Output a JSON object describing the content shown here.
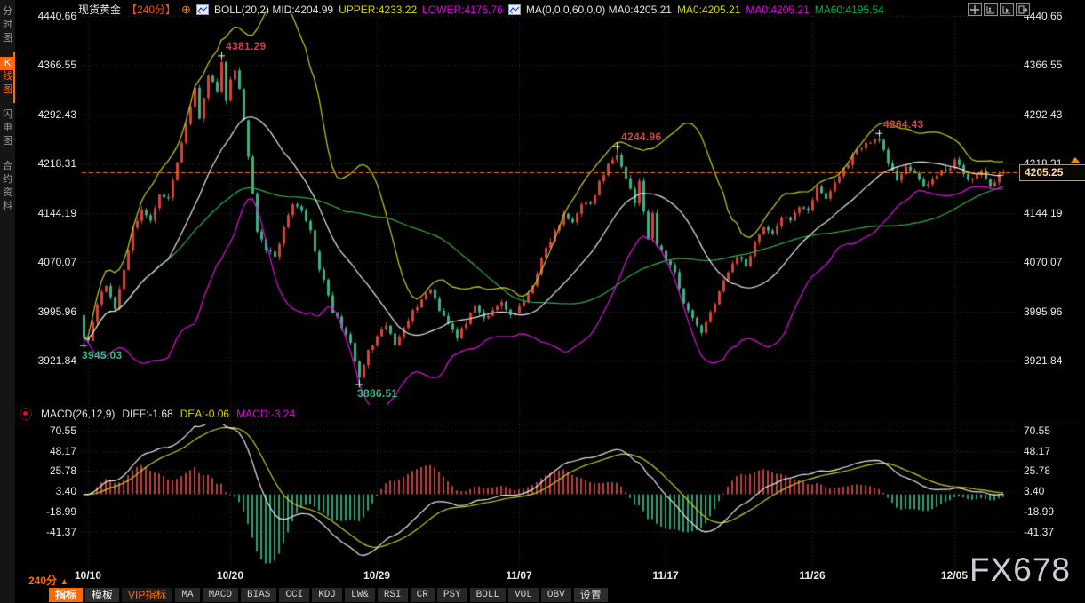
{
  "window": {
    "watermark": "FX678"
  },
  "icons": {
    "collapse": "⊕"
  },
  "sidebar": {
    "tabs": [
      {
        "label": "分时图",
        "selected": false
      },
      {
        "label": "K线图",
        "selected": true
      },
      {
        "label": "闪电图",
        "selected": false
      },
      {
        "label": "合约资料",
        "selected": false
      }
    ]
  },
  "legend": {
    "symbol": "现货黄金",
    "period": "【240分】",
    "boll": {
      "name": "BOLL(20,2)",
      "mid": "MID:4204.99",
      "upper": "UPPER:4233.22",
      "lower": "LOWER:4176.76"
    },
    "ma": {
      "name": "MA(0,0,0,60,0,0)",
      "ma0_a": "MA0:4205.21",
      "ma0_b": "MA0:4205.21",
      "ma0_c": "MA0:4205.21",
      "ma60": "MA60:4195.54"
    }
  },
  "main_panel": {
    "y_labels": [
      "4440.66",
      "4366.55",
      "4292.43",
      "4218.31",
      "4144.19",
      "4070.07",
      "3995.96",
      "3921.84"
    ],
    "y_max": 4440.66,
    "y_min": 3921.84,
    "current_price": "4205.25",
    "current_price_value": 4205.25
  },
  "macd_panel": {
    "name": "MACD(26,12,9)",
    "diff": "DIFF:-1.68",
    "dea": "DEA:-0.06",
    "macd": "MACD:-3.24",
    "y_labels": [
      "70.55",
      "48.17",
      "25.78",
      "3.40",
      "-18.99",
      "-41.37"
    ],
    "y_max": 70.55,
    "y_min": -41.37
  },
  "x_axis": {
    "period": "240分",
    "period_arrow": "▲",
    "dates": [
      {
        "label": "10/10",
        "index": 1
      },
      {
        "label": "10/20",
        "index": 33
      },
      {
        "label": "10/29",
        "index": 66
      },
      {
        "label": "11/07",
        "index": 98
      },
      {
        "label": "11/17",
        "index": 131
      },
      {
        "label": "11/26",
        "index": 164
      },
      {
        "label": "12/05",
        "index": 196
      }
    ]
  },
  "bottom_tabs": [
    {
      "label": "指标",
      "style": "selected"
    },
    {
      "label": "模板",
      "style": "normal"
    },
    {
      "label": "VIP指标",
      "style": "vip"
    },
    {
      "label": "MA",
      "style": "mono"
    },
    {
      "label": "MACD",
      "style": "mono"
    },
    {
      "label": "BIAS",
      "style": "mono"
    },
    {
      "label": "CCI",
      "style": "mono"
    },
    {
      "label": "KDJ",
      "style": "mono"
    },
    {
      "label": "LW&",
      "style": "mono"
    },
    {
      "label": "RSI",
      "style": "mono"
    },
    {
      "label": "CR",
      "style": "mono"
    },
    {
      "label": "PSY",
      "style": "mono"
    },
    {
      "label": "BOLL",
      "style": "mono"
    },
    {
      "label": "VOL",
      "style": "mono"
    },
    {
      "label": "OBV",
      "style": "mono"
    },
    {
      "label": "设置",
      "style": "settings"
    }
  ],
  "colors": {
    "accent_orange": "#ff6a00",
    "period_orange": "#ff4f00",
    "candle_up": "#d5423e",
    "candle_down": "#3cb184",
    "boll_mid": "#e9e9e9",
    "boll_upper": "#cccc22",
    "boll_lower": "#e011e0",
    "ma60_line": "#2db04b",
    "grid": "#383838",
    "macd_diff": "#e9e9e9",
    "macd_dea": "#cccc22",
    "hist_pos": "#bb4040",
    "hist_neg": "#2ea077",
    "ann_high": "#cb4343",
    "ann_low": "#35b487",
    "price_line": "#ff7a00"
  },
  "chart_data": {
    "type": "candlestick",
    "title": "现货黄金 240分 K线图 + BOLL(20,2) + MA60 + MACD(26,12,9)",
    "candles": 208,
    "final_close": 4205.25,
    "y_range_main": [
      3921.84,
      4440.66
    ],
    "y_range_macd": [
      -41.37,
      70.55
    ],
    "indicator_values": {
      "boll_mid": 4204.99,
      "boll_upper": 4233.22,
      "boll_lower": 4176.76,
      "ma0": 4205.21,
      "ma60": 4195.54,
      "macd_diff": -1.68,
      "macd_dea": -0.06,
      "macd_bar": -3.24
    },
    "close_keyframes": [
      [
        0,
        3960
      ],
      [
        1,
        3952
      ],
      [
        3,
        4010
      ],
      [
        5,
        4035
      ],
      [
        7,
        4000
      ],
      [
        9,
        4060
      ],
      [
        11,
        4120
      ],
      [
        13,
        4150
      ],
      [
        15,
        4130
      ],
      [
        17,
        4175
      ],
      [
        19,
        4165
      ],
      [
        21,
        4220
      ],
      [
        23,
        4280
      ],
      [
        25,
        4330
      ],
      [
        26,
        4290
      ],
      [
        28,
        4350
      ],
      [
        30,
        4330
      ],
      [
        31,
        4372
      ],
      [
        32,
        4310
      ],
      [
        33,
        4345
      ],
      [
        34,
        4362
      ],
      [
        35,
        4330
      ],
      [
        36,
        4280
      ],
      [
        37,
        4230
      ],
      [
        38,
        4170
      ],
      [
        39,
        4120
      ],
      [
        41,
        4085
      ],
      [
        43,
        4080
      ],
      [
        45,
        4120
      ],
      [
        47,
        4155
      ],
      [
        49,
        4145
      ],
      [
        51,
        4120
      ],
      [
        52,
        4085
      ],
      [
        54,
        4040
      ],
      [
        56,
        3995
      ],
      [
        58,
        3975
      ],
      [
        60,
        3945
      ],
      [
        62,
        3895
      ],
      [
        64,
        3935
      ],
      [
        66,
        3955
      ],
      [
        68,
        3975
      ],
      [
        70,
        3945
      ],
      [
        72,
        3975
      ],
      [
        74,
        3995
      ],
      [
        76,
        4015
      ],
      [
        78,
        4030
      ],
      [
        80,
        4000
      ],
      [
        82,
        3980
      ],
      [
        84,
        3955
      ],
      [
        86,
        3980
      ],
      [
        88,
        4000
      ],
      [
        90,
        3985
      ],
      [
        92,
        3995
      ],
      [
        94,
        4010
      ],
      [
        96,
        3990
      ],
      [
        98,
        4000
      ],
      [
        100,
        4020
      ],
      [
        102,
        4055
      ],
      [
        104,
        4090
      ],
      [
        106,
        4115
      ],
      [
        108,
        4140
      ],
      [
        110,
        4130
      ],
      [
        112,
        4160
      ],
      [
        114,
        4155
      ],
      [
        116,
        4190
      ],
      [
        118,
        4215
      ],
      [
        120,
        4235
      ],
      [
        122,
        4200
      ],
      [
        124,
        4160
      ],
      [
        125,
        4190
      ],
      [
        127,
        4105
      ],
      [
        128,
        4140
      ],
      [
        129,
        4095
      ],
      [
        131,
        4075
      ],
      [
        133,
        4055
      ],
      [
        135,
        4010
      ],
      [
        137,
        3985
      ],
      [
        139,
        3965
      ],
      [
        141,
        3995
      ],
      [
        143,
        4025
      ],
      [
        145,
        4055
      ],
      [
        147,
        4080
      ],
      [
        149,
        4065
      ],
      [
        151,
        4100
      ],
      [
        153,
        4125
      ],
      [
        155,
        4110
      ],
      [
        157,
        4140
      ],
      [
        159,
        4130
      ],
      [
        161,
        4155
      ],
      [
        163,
        4150
      ],
      [
        165,
        4180
      ],
      [
        167,
        4165
      ],
      [
        169,
        4190
      ],
      [
        171,
        4210
      ],
      [
        173,
        4230
      ],
      [
        175,
        4245
      ],
      [
        177,
        4250
      ],
      [
        179,
        4258
      ],
      [
        181,
        4215
      ],
      [
        183,
        4195
      ],
      [
        185,
        4215
      ],
      [
        187,
        4200
      ],
      [
        189,
        4185
      ],
      [
        191,
        4195
      ],
      [
        193,
        4205
      ],
      [
        195,
        4215
      ],
      [
        196,
        4225
      ],
      [
        198,
        4200
      ],
      [
        200,
        4195
      ],
      [
        202,
        4205
      ],
      [
        204,
        4185
      ],
      [
        206,
        4200
      ],
      [
        207,
        4205.25
      ]
    ],
    "extremes": [
      {
        "index": 0,
        "type": "low",
        "value": 3945.03,
        "label": "3945.03"
      },
      {
        "index": 31,
        "type": "high",
        "value": 4381.29,
        "label": "4381.29"
      },
      {
        "index": 62,
        "type": "low",
        "value": 3886.51,
        "label": "3886.51"
      },
      {
        "index": 120,
        "type": "high",
        "value": 4244.96,
        "label": "4244.96"
      },
      {
        "index": 179,
        "type": "high",
        "value": 4264.43,
        "label": "4264.43"
      }
    ]
  }
}
